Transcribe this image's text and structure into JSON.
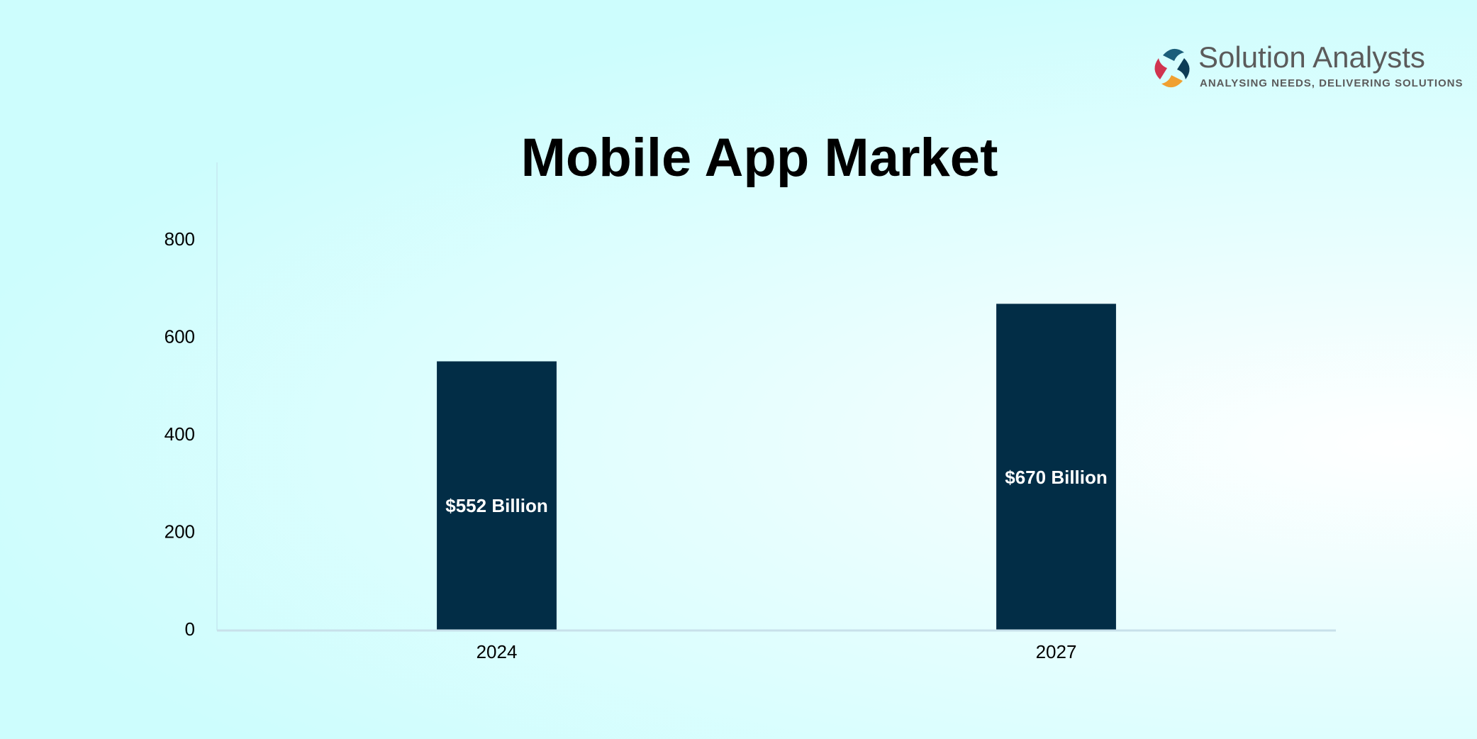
{
  "logo": {
    "name": "Solution Analysts",
    "tagline": "ANALYSING NEEDS, DELIVERING SOLUTIONS"
  },
  "chart_data": {
    "type": "bar",
    "title": "Mobile App Market",
    "categories": [
      "2024",
      "2027"
    ],
    "values": [
      552,
      670
    ],
    "value_labels": [
      "$552 Billion",
      "$670 Billion"
    ],
    "color": "#022d46",
    "ylim": [
      0,
      960
    ],
    "yticks": [
      0,
      200,
      400,
      600,
      800
    ],
    "grid": false
  }
}
